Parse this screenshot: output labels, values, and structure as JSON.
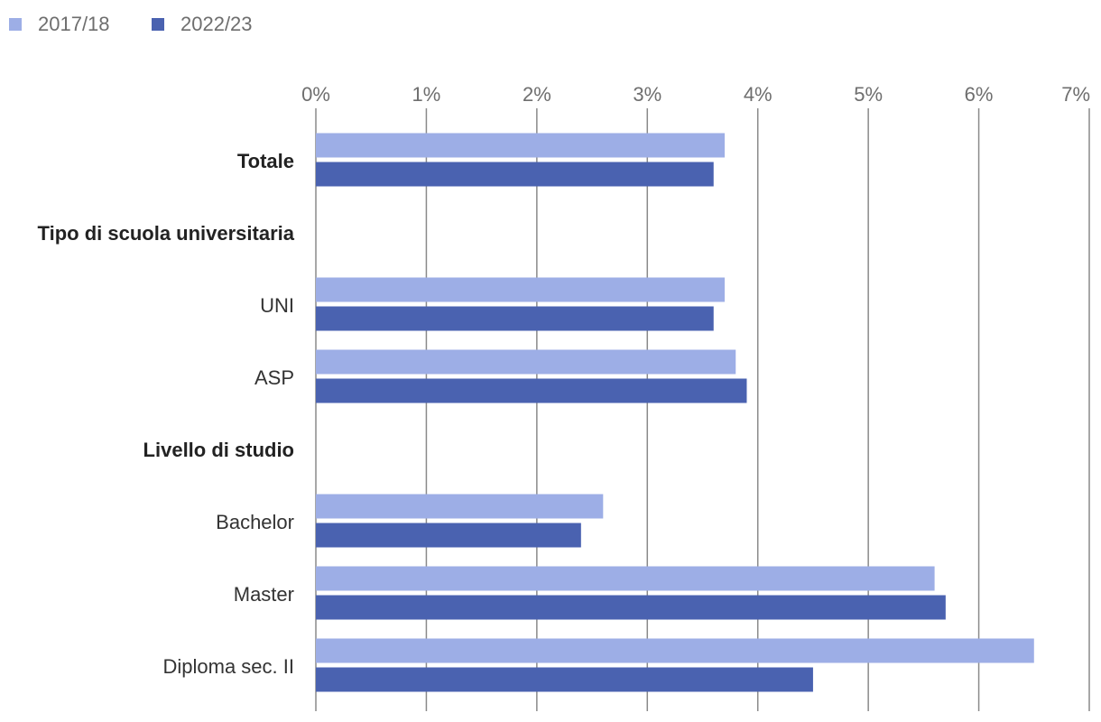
{
  "chart_data": {
    "type": "bar",
    "orientation": "horizontal",
    "xlim": [
      0,
      7
    ],
    "x_ticks": [
      "0%",
      "1%",
      "2%",
      "3%",
      "4%",
      "5%",
      "6%",
      "7%"
    ],
    "grid": true,
    "legend_position": "top-left",
    "categories": [
      {
        "label": "Totale",
        "header": true,
        "values": [
          3.7,
          3.6
        ]
      },
      {
        "label": "Tipo di scuola universitaria",
        "header": true,
        "values": [
          null,
          null
        ]
      },
      {
        "label": "UNI",
        "header": false,
        "values": [
          3.7,
          3.6
        ]
      },
      {
        "label": "ASP",
        "header": false,
        "values": [
          3.8,
          3.9
        ]
      },
      {
        "label": "Livello di studio",
        "header": true,
        "values": [
          null,
          null
        ]
      },
      {
        "label": "Bachelor",
        "header": false,
        "values": [
          2.6,
          2.4
        ]
      },
      {
        "label": "Master",
        "header": false,
        "values": [
          5.6,
          5.7
        ]
      },
      {
        "label": "Diploma sec. II",
        "header": false,
        "values": [
          6.5,
          4.5
        ]
      }
    ],
    "series": [
      {
        "name": "2017/18",
        "color": "#9daee6"
      },
      {
        "name": "2022/23",
        "color": "#4a62b0"
      }
    ]
  }
}
